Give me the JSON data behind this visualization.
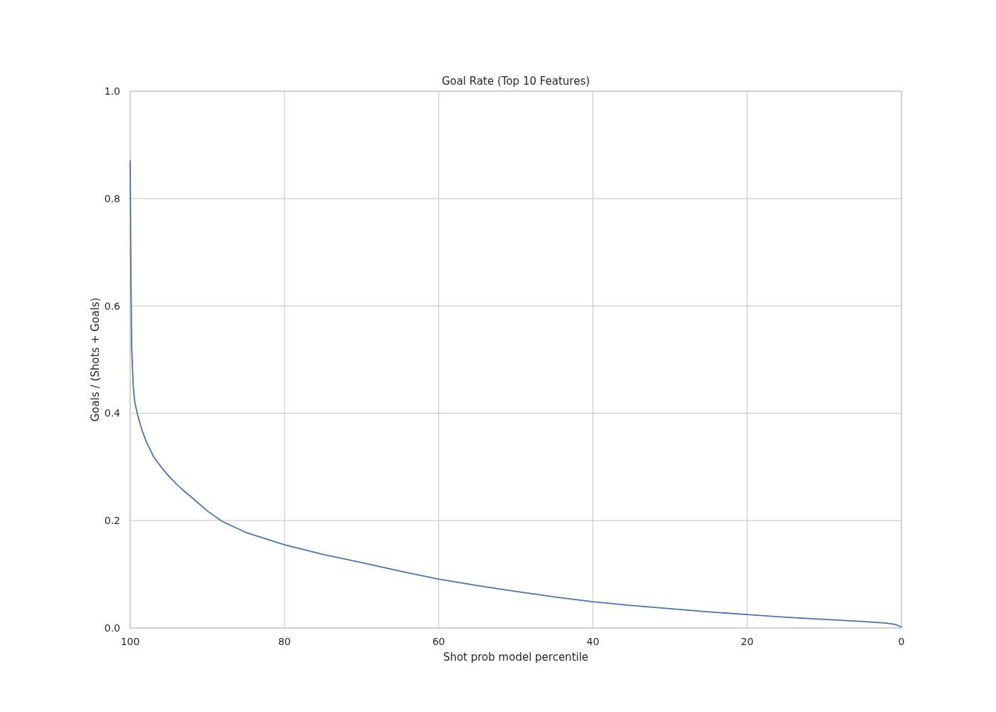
{
  "chart_data": {
    "type": "line",
    "title": "Goal Rate (Top 10 Features)",
    "xlabel": "Shot prob model percentile",
    "ylabel": "Goals / (Shots + Goals)",
    "xlim": [
      100,
      0
    ],
    "xticks": [
      100,
      80,
      60,
      40,
      20,
      0
    ],
    "ylim": [
      0,
      1
    ],
    "yticks": [
      {
        "value": 0,
        "label": "0.0"
      },
      {
        "value": 0.2,
        "label": "0.2"
      },
      {
        "value": 0.4,
        "label": "0.4"
      },
      {
        "value": 0.6,
        "label": "0.6"
      },
      {
        "value": 0.8,
        "label": "0.8"
      },
      {
        "value": 1,
        "label": "1.0"
      }
    ],
    "grid": true,
    "x": [
      100,
      99.9,
      99.8,
      99.6,
      99.4,
      99,
      98.5,
      98,
      97,
      96,
      95,
      94,
      93,
      92,
      90,
      88,
      85,
      80,
      75,
      70,
      65,
      60,
      55,
      50,
      45,
      40,
      35,
      30,
      25,
      20,
      15,
      10,
      5,
      2,
      1,
      0.5,
      0
    ],
    "series": [
      {
        "color": "#4c72b0",
        "values": [
          0.87,
          0.65,
          0.52,
          0.45,
          0.42,
          0.395,
          0.37,
          0.35,
          0.32,
          0.3,
          0.283,
          0.268,
          0.255,
          0.243,
          0.218,
          0.198,
          0.178,
          0.155,
          0.137,
          0.122,
          0.106,
          0.091,
          0.079,
          0.068,
          0.058,
          0.049,
          0.042,
          0.036,
          0.03,
          0.025,
          0.02,
          0.016,
          0.012,
          0.009,
          0.007,
          0.005,
          0.002
        ]
      }
    ]
  }
}
